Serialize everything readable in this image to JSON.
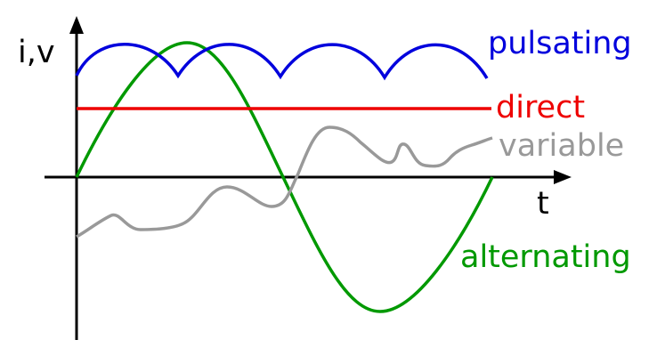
{
  "axes": {
    "y_label": "i,v",
    "x_label": "t"
  },
  "curves": {
    "pulsating": "pulsating",
    "direct": "direct",
    "variable": "variable",
    "alternating": "alternating"
  }
}
